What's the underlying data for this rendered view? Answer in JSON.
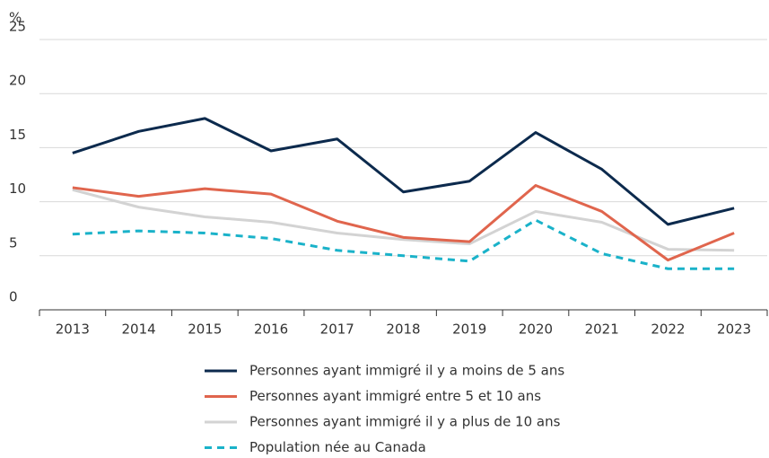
{
  "chart_data": {
    "type": "line",
    "y_label": "%",
    "categories": [
      "2013",
      "2014",
      "2015",
      "2016",
      "2017",
      "2018",
      "2019",
      "2020",
      "2021",
      "2022",
      "2023"
    ],
    "series": [
      {
        "name": "Personnes ayant immigré il y a moins de 5 ans",
        "color": "#0c2a4d",
        "linestyle": "solid",
        "values": [
          14.5,
          16.5,
          17.7,
          14.7,
          15.8,
          10.9,
          11.9,
          16.4,
          13.0,
          7.9,
          9.4
        ]
      },
      {
        "name": "Personnes ayant immigré entre 5  et 10 ans",
        "color": "#e0654d",
        "linestyle": "solid",
        "values": [
          11.3,
          10.5,
          11.2,
          10.7,
          8.2,
          6.7,
          6.3,
          11.5,
          9.1,
          4.6,
          7.1
        ]
      },
      {
        "name": "Personnes ayant immigré il y a plus de 10 ans",
        "color": "#d3d3d3",
        "linestyle": "solid",
        "values": [
          11.1,
          9.5,
          8.6,
          8.1,
          7.1,
          6.5,
          6.1,
          9.1,
          8.1,
          5.6,
          5.5
        ]
      },
      {
        "name": "Population née au Canada",
        "color": "#1ab2c9",
        "linestyle": "dashed",
        "values": [
          7.0,
          7.3,
          7.1,
          6.6,
          5.5,
          5.0,
          4.5,
          8.3,
          5.2,
          3.8,
          3.8
        ]
      }
    ],
    "ylim": [
      0,
      25
    ],
    "yticks": [
      0,
      5,
      10,
      15,
      20,
      25
    ],
    "grid": true
  }
}
